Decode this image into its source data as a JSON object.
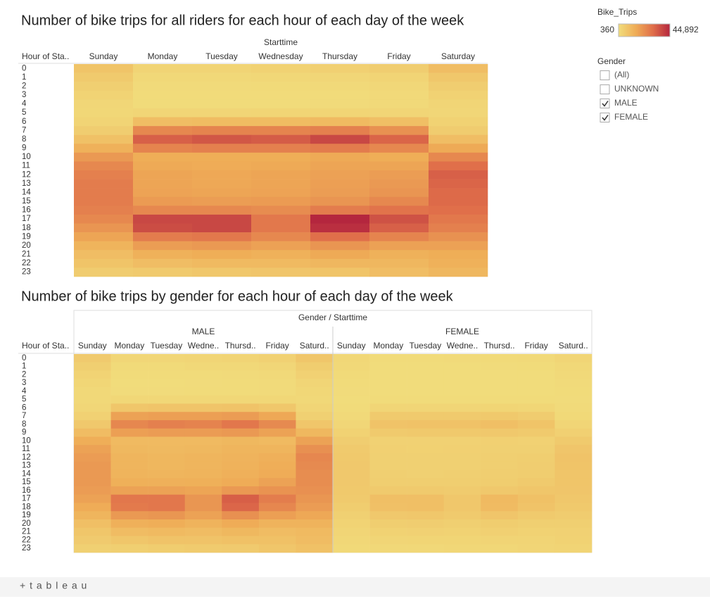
{
  "chart_data": [
    {
      "type": "heatmap",
      "title": "Number of bike trips for all riders for each hour of each day of the week",
      "column_header": "Starttime",
      "row_header": "Hour of Sta..",
      "categories": [
        "Sunday",
        "Monday",
        "Tuesday",
        "Wednesday",
        "Thursday",
        "Friday",
        "Saturday"
      ],
      "hours": [
        0,
        1,
        2,
        3,
        4,
        5,
        6,
        7,
        8,
        9,
        10,
        11,
        12,
        13,
        14,
        15,
        16,
        17,
        18,
        19,
        20,
        21,
        22,
        23
      ],
      "values": [
        [
          8000,
          3000,
          3000,
          3500,
          4000,
          5000,
          10000
        ],
        [
          6000,
          1500,
          1500,
          2000,
          2200,
          3000,
          7000
        ],
        [
          4500,
          900,
          900,
          1100,
          1200,
          1800,
          5000
        ],
        [
          3200,
          600,
          600,
          700,
          800,
          1200,
          3500
        ],
        [
          2200,
          700,
          700,
          800,
          900,
          1200,
          2500
        ],
        [
          2000,
          2500,
          2600,
          2700,
          2700,
          2500,
          2200
        ],
        [
          3000,
          10000,
          10500,
          10500,
          11000,
          9500,
          3500
        ],
        [
          5000,
          24000,
          25000,
          25000,
          26000,
          22000,
          5500
        ],
        [
          9000,
          33000,
          35000,
          34000,
          38000,
          32000,
          10000
        ],
        [
          14000,
          25000,
          26000,
          26000,
          27000,
          24000,
          16000
        ],
        [
          20000,
          15000,
          15000,
          15000,
          16000,
          15000,
          24000
        ],
        [
          24000,
          16000,
          15500,
          16000,
          17000,
          17000,
          30000
        ],
        [
          26000,
          17000,
          16500,
          17000,
          18000,
          19000,
          33000
        ],
        [
          27000,
          17000,
          16500,
          17000,
          18500,
          20000,
          32000
        ],
        [
          27000,
          17500,
          17000,
          17500,
          19000,
          21000,
          31000
        ],
        [
          27000,
          19500,
          19000,
          19500,
          21000,
          24000,
          31000
        ],
        [
          26000,
          24000,
          24000,
          23000,
          27000,
          29000,
          30000
        ],
        [
          24000,
          38000,
          38000,
          28000,
          44892,
          36000,
          28000
        ],
        [
          21000,
          37000,
          38000,
          28000,
          43000,
          33000,
          26000
        ],
        [
          17000,
          27000,
          28000,
          24000,
          30000,
          25000,
          22000
        ],
        [
          13000,
          19000,
          20000,
          18000,
          21000,
          18000,
          18000
        ],
        [
          10000,
          14000,
          15000,
          14000,
          16000,
          14000,
          15000
        ],
        [
          8000,
          10000,
          11000,
          11000,
          12000,
          12000,
          14000
        ],
        [
          5500,
          6000,
          7000,
          7500,
          8000,
          10000,
          12000
        ]
      ]
    },
    {
      "type": "heatmap",
      "title": "Number of bike trips by gender for each hour of each day of the week",
      "column_header": "Gender / Starttime",
      "row_header": "Hour of Sta..",
      "hours": [
        0,
        1,
        2,
        3,
        4,
        5,
        6,
        7,
        8,
        9,
        10,
        11,
        12,
        13,
        14,
        15,
        16,
        17,
        18,
        19,
        20,
        21,
        22,
        23
      ],
      "series": [
        {
          "name": "MALE",
          "categories": [
            "Sunday",
            "Monday",
            "Tuesday",
            "Wedne..",
            "Thursd..",
            "Friday",
            "Saturd.."
          ],
          "values": [
            [
              5900,
              2200,
              2200,
              2600,
              3000,
              3700,
              7400
            ],
            [
              4400,
              1100,
              1100,
              1500,
              1600,
              2200,
              5200
            ],
            [
              3300,
              670,
              670,
              810,
              890,
              1300,
              3700
            ],
            [
              2400,
              440,
              440,
              520,
              590,
              890,
              2600
            ],
            [
              1600,
              520,
              520,
              590,
              670,
              890,
              1900
            ],
            [
              1500,
              1900,
              1900,
              2000,
              2000,
              1900,
              1600
            ],
            [
              2200,
              7400,
              7800,
              7800,
              8100,
              7000,
              2600
            ],
            [
              3700,
              17800,
              18500,
              18500,
              19200,
              16300,
              4100
            ],
            [
              6700,
              24400,
              25900,
              25200,
              28100,
              23700,
              7400
            ],
            [
              10400,
              18500,
              19200,
              19200,
              20000,
              17800,
              11800
            ],
            [
              14800,
              11100,
              11100,
              11100,
              11800,
              11100,
              17800
            ],
            [
              17800,
              11800,
              11500,
              11800,
              12600,
              12600,
              22200
            ],
            [
              19200,
              12600,
              12200,
              12600,
              13300,
              14100,
              24400
            ],
            [
              20000,
              12600,
              12200,
              12600,
              13700,
              14800,
              23700
            ],
            [
              20000,
              13000,
              12600,
              13000,
              14100,
              15500,
              22900
            ],
            [
              20000,
              14400,
              14100,
              14400,
              15500,
              17800,
              22900
            ],
            [
              19200,
              17800,
              17800,
              17000,
              20000,
              21500,
              22200
            ],
            [
              17800,
              28100,
              28100,
              20700,
              33200,
              26600,
              20700
            ],
            [
              15500,
              27400,
              28100,
              20700,
              31800,
              24400,
              19200
            ],
            [
              12600,
              20000,
              20700,
              17800,
              22200,
              18500,
              16300
            ],
            [
              9600,
              14100,
              14800,
              13300,
              15500,
              13300,
              13300
            ],
            [
              7400,
              10400,
              11100,
              10400,
              11800,
              10400,
              11100
            ],
            [
              5900,
              7400,
              8100,
              8100,
              8900,
              8900,
              10400
            ],
            [
              4100,
              4400,
              5200,
              5600,
              5900,
              7400,
              8900
            ]
          ]
        },
        {
          "name": "FEMALE",
          "categories": [
            "Sunday",
            "Monday",
            "Tuesday",
            "Wedne..",
            "Thursd..",
            "Friday",
            "Saturd.."
          ],
          "values": [
            [
              2000,
              750,
              750,
              880,
              1000,
              1250,
              2500
            ],
            [
              1500,
              380,
              380,
              500,
              550,
              750,
              1750
            ],
            [
              1100,
              400,
              400,
              400,
              400,
              450,
              1250
            ],
            [
              800,
              360,
              360,
              360,
              360,
              360,
              880
            ],
            [
              550,
              360,
              360,
              360,
              360,
              360,
              620
            ],
            [
              500,
              620,
              650,
              680,
              680,
              620,
              550
            ],
            [
              750,
              2500,
              2600,
              2600,
              2700,
              2400,
              880
            ],
            [
              1250,
              6000,
              6200,
              6200,
              6500,
              5500,
              1400
            ],
            [
              2200,
              8200,
              8700,
              8500,
              9500,
              8000,
              2500
            ],
            [
              3500,
              6200,
              6500,
              6500,
              6700,
              6000,
              4000
            ],
            [
              5000,
              3700,
              3700,
              3700,
              4000,
              3700,
              6000
            ],
            [
              6000,
              4000,
              3900,
              4000,
              4200,
              4200,
              7500
            ],
            [
              6500,
              4200,
              4100,
              4200,
              4500,
              4700,
              8200
            ],
            [
              6700,
              4200,
              4100,
              4200,
              4600,
              5000,
              8000
            ],
            [
              6700,
              4400,
              4200,
              4400,
              4700,
              5200,
              7700
            ],
            [
              6700,
              4900,
              4700,
              4900,
              5200,
              6000,
              7700
            ],
            [
              6500,
              6000,
              6000,
              5700,
              6700,
              7200,
              7500
            ],
            [
              6000,
              9500,
              9500,
              7000,
              11200,
              9000,
              7000
            ],
            [
              5200,
              9200,
              9500,
              7000,
              10700,
              8200,
              6500
            ],
            [
              4200,
              6700,
              7000,
              6000,
              7500,
              6200,
              5500
            ],
            [
              3200,
              4700,
              5000,
              4500,
              5200,
              4500,
              4500
            ],
            [
              2500,
              3500,
              3700,
              3500,
              4000,
              3500,
              3700
            ],
            [
              2000,
              2500,
              2700,
              2700,
              3000,
              3000,
              3500
            ],
            [
              1400,
              1500,
              1750,
              1900,
              2000,
              2500,
              3000
            ]
          ]
        }
      ]
    }
  ],
  "color_legend": {
    "title": "Bike_Trips",
    "min": 360,
    "max": {
      "value": 44892,
      "label": "44,892"
    },
    "colors": [
      "#f1dc7b",
      "#efad57",
      "#e06f4a",
      "#b4263e"
    ]
  },
  "filter": {
    "title": "Gender",
    "items": [
      {
        "label": "(All)",
        "checked": false
      },
      {
        "label": "UNKNOWN",
        "checked": false
      },
      {
        "label": "MALE",
        "checked": true
      },
      {
        "label": "FEMALE",
        "checked": true
      }
    ]
  },
  "footer": {
    "brand": "+ t a b l e a u"
  }
}
